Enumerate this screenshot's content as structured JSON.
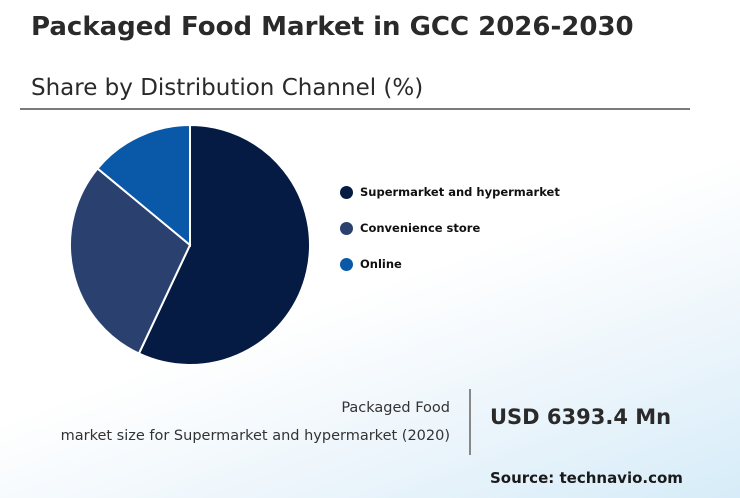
{
  "chart_data": {
    "type": "pie",
    "title": "Packaged Food Market in GCC 2026-2030",
    "subtitle": "Share by Distribution Channel (%)",
    "categories": [
      "Supermarket and hypermarket",
      "Convenience store",
      "Online"
    ],
    "values": [
      57,
      29,
      14
    ],
    "colors": [
      "#061b44",
      "#2a4170",
      "#0a59a8"
    ],
    "legend_position": "right"
  },
  "info": {
    "label_line1": "Packaged Food",
    "label_line2": "market size for Supermarket and hypermarket (2020)",
    "value": "USD 6393.4 Mn"
  },
  "source": "Source: technavio.com"
}
